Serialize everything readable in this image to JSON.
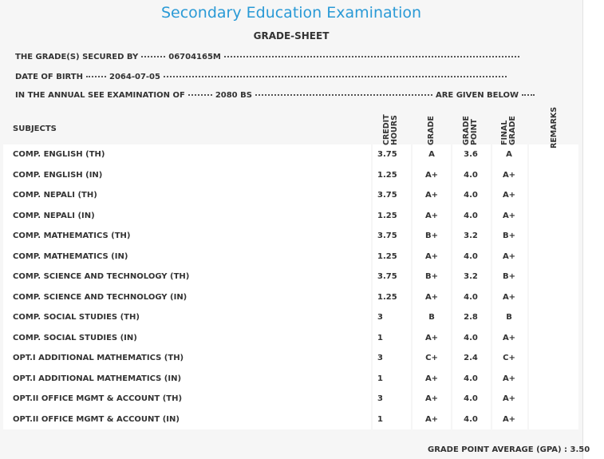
{
  "header": {
    "title": "Secondary Education Examination",
    "subtitle": "GRADE-SHEET"
  },
  "info": [
    {
      "label": "THE GRADE(S) SECURED BY",
      "value": "06704165M"
    },
    {
      "label": "DATE OF BIRTH",
      "value": "2064-07-05"
    },
    {
      "label": "IN THE ANNUAL SEE EXAMINATION OF",
      "value": "2080 BS",
      "suffix": "ARE GIVEN BELOW"
    }
  ],
  "table": {
    "columns": [
      "SUBJECTS",
      "CREDIT HOURS",
      "GRADE",
      "GRADE POINT",
      "FINAL GRADE",
      "REMARKS"
    ],
    "rows": [
      [
        "COMP. ENGLISH (TH)",
        "3.75",
        "A",
        "3.6",
        "A"
      ],
      [
        "COMP. ENGLISH (IN)",
        "1.25",
        "A+",
        "4.0",
        "A+"
      ],
      [
        "COMP. NEPALI (TH)",
        "3.75",
        "A+",
        "4.0",
        "A+"
      ],
      [
        "COMP. NEPALI (IN)",
        "1.25",
        "A+",
        "4.0",
        "A+"
      ],
      [
        "COMP. MATHEMATICS (TH)",
        "3.75",
        "B+",
        "3.2",
        "B+"
      ],
      [
        "COMP. MATHEMATICS (IN)",
        "1.25",
        "A+",
        "4.0",
        "A+"
      ],
      [
        "COMP. SCIENCE AND TECHNOLOGY (TH)",
        "3.75",
        "B+",
        "3.2",
        "B+"
      ],
      [
        "COMP. SCIENCE AND TECHNOLOGY (IN)",
        "1.25",
        "A+",
        "4.0",
        "A+"
      ],
      [
        "COMP. SOCIAL STUDIES (TH)",
        "3",
        "B",
        "2.8",
        "B"
      ],
      [
        "COMP. SOCIAL STUDIES (IN)",
        "1",
        "A+",
        "4.0",
        "A+"
      ],
      [
        "OPT.I ADDITIONAL MATHEMATICS (TH)",
        "3",
        "C+",
        "2.4",
        "C+"
      ],
      [
        "OPT.I ADDITIONAL MATHEMATICS (IN)",
        "1",
        "A+",
        "4.0",
        "A+"
      ],
      [
        "OPT.II OFFICE MGMT & ACCOUNT (TH)",
        "3",
        "A+",
        "4.0",
        "A+"
      ],
      [
        "OPT.II OFFICE MGMT & ACCOUNT (IN)",
        "1",
        "A+",
        "4.0",
        "A+"
      ]
    ]
  },
  "footer": {
    "label": "GRADE POINT AVERAGE (GPA) :",
    "value": "3.50"
  }
}
